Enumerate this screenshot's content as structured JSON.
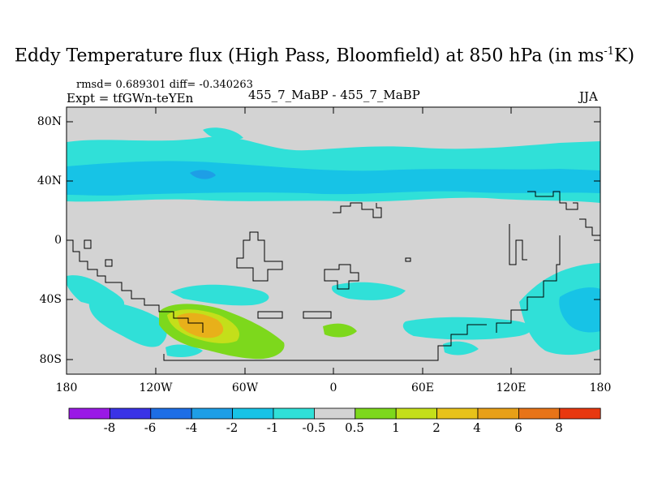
{
  "title": {
    "main": "Eddy Temperature flux (High Pass, Bloomfield) at 850 hPa (in ms",
    "sup": "-1",
    "unit_tail": "K)"
  },
  "stats": "rmsd= 0.689301 diff= -0.340263",
  "experiment": "Expt = tfGWn-teYEn",
  "comparison": "455_7_MaBP - 455_7_MaBP",
  "season": "JJA",
  "axes": {
    "lat_labels": [
      "80N",
      "40N",
      "0",
      "40S",
      "80S"
    ],
    "lon_labels": [
      "180",
      "120W",
      "60W",
      "0",
      "60E",
      "120E",
      "180"
    ]
  },
  "colorbar": {
    "labels": [
      "-8",
      "-6",
      "-4",
      "-2",
      "-1",
      "-0.5",
      "0.5",
      "1",
      "2",
      "4",
      "6",
      "8"
    ],
    "colors": [
      "#9a19e6",
      "#3a33e6",
      "#1e6ee6",
      "#1e9ee6",
      "#17c3e6",
      "#30e0d8",
      "#d3d3d3",
      "#7dd81c",
      "#c4df1a",
      "#e8c21a",
      "#e8a018",
      "#e87418",
      "#e8380f"
    ]
  },
  "map_colors": {
    "neutral": "#d3d3d3",
    "pos_light": "#7dd81c",
    "pos_mid": "#c4df1a",
    "pos_high": "#e8b01a",
    "neg_light": "#30e0d8",
    "neg_mid": "#17c3e6",
    "neg_strong": "#1e9ee6"
  }
}
